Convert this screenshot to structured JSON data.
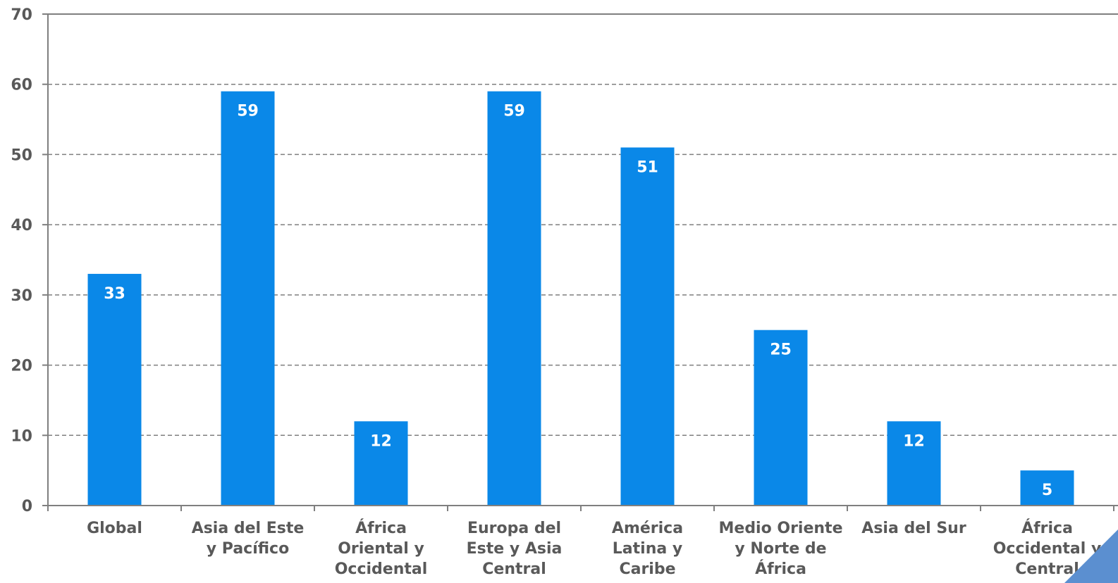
{
  "chart_data": {
    "type": "bar",
    "categories": [
      [
        "Global"
      ],
      [
        "Asia del Este",
        "y Pacífico"
      ],
      [
        "África",
        "Oriental y",
        "Occidental"
      ],
      [
        "Europa del",
        "Este y Asia",
        "Central"
      ],
      [
        "América",
        "Latina y",
        "Caribe"
      ],
      [
        "Medio Oriente",
        "y Norte de",
        "África"
      ],
      [
        "Asia del Sur"
      ],
      [
        "África",
        "Occidental y",
        "Central"
      ]
    ],
    "values": [
      33,
      59,
      12,
      59,
      51,
      25,
      12,
      5
    ],
    "data_labels": [
      "33",
      "59",
      "12",
      "59",
      "51",
      "25",
      "12",
      "5"
    ],
    "ylim": [
      0,
      70
    ],
    "yticks": [
      "0",
      "10",
      "20",
      "30",
      "40",
      "50",
      "60",
      "70"
    ],
    "title": "",
    "xlabel": "",
    "ylabel": "",
    "grid": "horizontal-dashed",
    "colors": {
      "bar": "#0A88E8",
      "axis": "#7F7F7F",
      "text": "#595959",
      "corner": "#5B8FD0"
    }
  }
}
